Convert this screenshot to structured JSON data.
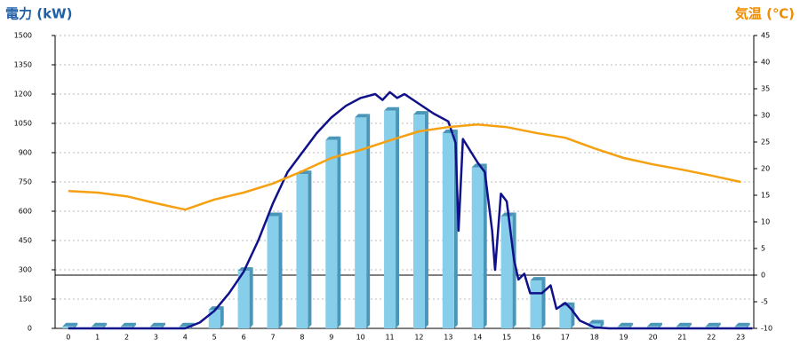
{
  "chart_data": {
    "type": "bar",
    "title": "電力 (kW)",
    "y2_title": "気温 (℃)",
    "categories": [
      "0",
      "1",
      "2",
      "3",
      "4",
      "5",
      "6",
      "7",
      "8",
      "9",
      "10",
      "11",
      "12",
      "13",
      "14",
      "15",
      "16",
      "17",
      "18",
      "19",
      "20",
      "21",
      "22",
      "23"
    ],
    "xlim": [
      -0.45,
      23.45
    ],
    "ylim": [
      0,
      1500
    ],
    "yticks": [
      0,
      150,
      300,
      450,
      600,
      750,
      900,
      1050,
      1200,
      1350,
      1500
    ],
    "y2lim": [
      -10,
      45
    ],
    "y2ticks": [
      -10,
      -5,
      0,
      5,
      10,
      15,
      20,
      25,
      30,
      35,
      40,
      45
    ],
    "grid": true,
    "title_color": "#1e5fa8",
    "y2_title_color": "#f08c00",
    "zero_line_color": "#000000",
    "series": [
      {
        "type": "bar",
        "color": "#87ceeb",
        "side_color": "#4a96b8",
        "values": [
          10,
          10,
          10,
          10,
          10,
          95,
          295,
          575,
          790,
          965,
          1080,
          1115,
          1095,
          1000,
          825,
          575,
          245,
          115,
          25,
          10,
          10,
          10,
          10,
          10
        ]
      },
      {
        "type": "line",
        "color": "#10108a",
        "x": [
          0,
          4,
          4.5,
          5,
          5.5,
          6,
          6.5,
          7,
          7.5,
          8,
          8.5,
          9,
          9.5,
          10,
          10.5,
          10.75,
          11,
          11.25,
          11.5,
          12,
          12.5,
          13,
          13.25,
          13.35,
          13.5,
          14,
          14.25,
          14.5,
          14.6,
          14.8,
          15,
          15.25,
          15.4,
          15.6,
          15.8,
          16.2,
          16.5,
          16.7,
          17,
          17.2,
          17.5,
          18,
          18.5,
          23.4
        ],
        "values": [
          0,
          0,
          30,
          90,
          180,
          290,
          450,
          640,
          800,
          900,
          1000,
          1080,
          1140,
          1180,
          1200,
          1170,
          1210,
          1180,
          1200,
          1150,
          1100,
          1060,
          950,
          500,
          970,
          850,
          800,
          500,
          300,
          690,
          650,
          350,
          250,
          280,
          180,
          180,
          220,
          100,
          130,
          100,
          40,
          5,
          0,
          0
        ]
      },
      {
        "type": "line",
        "axis": "y2",
        "color": "#f5a010",
        "values": [
          15.8,
          15.5,
          14.8,
          13.5,
          12.3,
          14.2,
          15.5,
          17.2,
          19.5,
          22,
          23.5,
          25.3,
          27,
          27.8,
          28.3,
          27.8,
          26.7,
          25.8,
          23.8,
          22,
          20.8,
          19.8,
          18.7,
          17.5
        ]
      }
    ]
  }
}
